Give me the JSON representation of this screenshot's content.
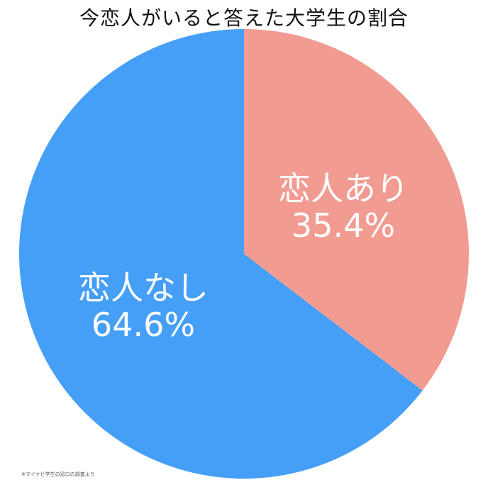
{
  "chart_data": {
    "type": "pie",
    "title": "今恋人がいると答えた大学生の割合",
    "slices": [
      {
        "label": "恋人あり",
        "value": 35.4,
        "value_label": "35.4%",
        "color": "#f19b91"
      },
      {
        "label": "恋人なし",
        "value": 64.6,
        "value_label": "64.6%",
        "color": "#459ff7"
      }
    ],
    "start": "12 o'clock",
    "direction": "clockwise"
  },
  "source_note": "※マイナビ学生の窓口の調査より"
}
